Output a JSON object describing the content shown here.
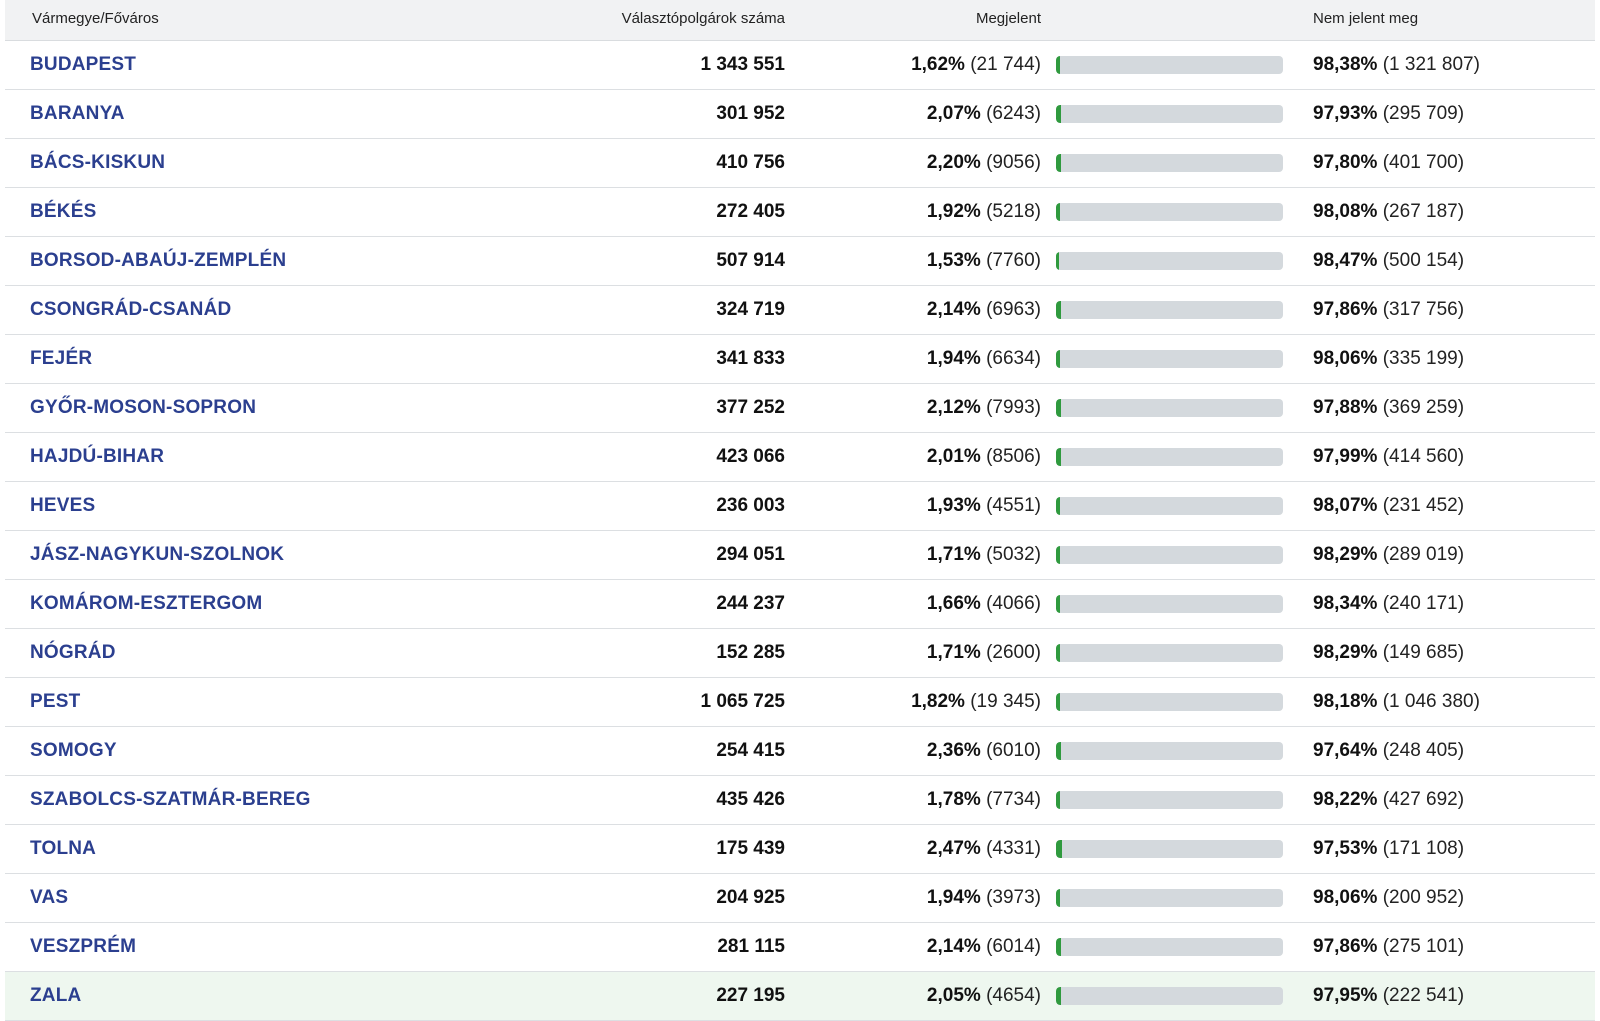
{
  "header": {
    "name": "Vármegye/Főváros",
    "voters": "Választópolgárok száma",
    "turnout": "Megjelent",
    "absent": "Nem jelent meg"
  },
  "colors": {
    "link": "#2b3f8f",
    "bar_fill": "#2f9a3e",
    "bar_track": "#d4d9dd",
    "highlight_row": "#eef7ef"
  },
  "rows": [
    {
      "name": "BUDAPEST",
      "voters": "1 343 551",
      "turnout_pct": "1,62%",
      "turnout_count": "(21 744)",
      "absent_pct": "98,38%",
      "absent_count": "(1 321 807)",
      "turnout_value": 1.62
    },
    {
      "name": "BARANYA",
      "voters": "301 952",
      "turnout_pct": "2,07%",
      "turnout_count": "(6243)",
      "absent_pct": "97,93%",
      "absent_count": "(295 709)",
      "turnout_value": 2.07
    },
    {
      "name": "BÁCS-KISKUN",
      "voters": "410 756",
      "turnout_pct": "2,20%",
      "turnout_count": "(9056)",
      "absent_pct": "97,80%",
      "absent_count": "(401 700)",
      "turnout_value": 2.2
    },
    {
      "name": "BÉKÉS",
      "voters": "272 405",
      "turnout_pct": "1,92%",
      "turnout_count": "(5218)",
      "absent_pct": "98,08%",
      "absent_count": "(267 187)",
      "turnout_value": 1.92
    },
    {
      "name": "BORSOD-ABAÚJ-ZEMPLÉN",
      "voters": "507 914",
      "turnout_pct": "1,53%",
      "turnout_count": "(7760)",
      "absent_pct": "98,47%",
      "absent_count": "(500 154)",
      "turnout_value": 1.53
    },
    {
      "name": "CSONGRÁD-CSANÁD",
      "voters": "324 719",
      "turnout_pct": "2,14%",
      "turnout_count": "(6963)",
      "absent_pct": "97,86%",
      "absent_count": "(317 756)",
      "turnout_value": 2.14
    },
    {
      "name": "FEJÉR",
      "voters": "341 833",
      "turnout_pct": "1,94%",
      "turnout_count": "(6634)",
      "absent_pct": "98,06%",
      "absent_count": "(335 199)",
      "turnout_value": 1.94
    },
    {
      "name": "GYŐR-MOSON-SOPRON",
      "voters": "377 252",
      "turnout_pct": "2,12%",
      "turnout_count": "(7993)",
      "absent_pct": "97,88%",
      "absent_count": "(369 259)",
      "turnout_value": 2.12
    },
    {
      "name": "HAJDÚ-BIHAR",
      "voters": "423 066",
      "turnout_pct": "2,01%",
      "turnout_count": "(8506)",
      "absent_pct": "97,99%",
      "absent_count": "(414 560)",
      "turnout_value": 2.01
    },
    {
      "name": "HEVES",
      "voters": "236 003",
      "turnout_pct": "1,93%",
      "turnout_count": "(4551)",
      "absent_pct": "98,07%",
      "absent_count": "(231 452)",
      "turnout_value": 1.93
    },
    {
      "name": "JÁSZ-NAGYKUN-SZOLNOK",
      "voters": "294 051",
      "turnout_pct": "1,71%",
      "turnout_count": "(5032)",
      "absent_pct": "98,29%",
      "absent_count": "(289 019)",
      "turnout_value": 1.71
    },
    {
      "name": "KOMÁROM-ESZTERGOM",
      "voters": "244 237",
      "turnout_pct": "1,66%",
      "turnout_count": "(4066)",
      "absent_pct": "98,34%",
      "absent_count": "(240 171)",
      "turnout_value": 1.66
    },
    {
      "name": "NÓGRÁD",
      "voters": "152 285",
      "turnout_pct": "1,71%",
      "turnout_count": "(2600)",
      "absent_pct": "98,29%",
      "absent_count": "(149 685)",
      "turnout_value": 1.71
    },
    {
      "name": "PEST",
      "voters": "1 065 725",
      "turnout_pct": "1,82%",
      "turnout_count": "(19 345)",
      "absent_pct": "98,18%",
      "absent_count": "(1 046 380)",
      "turnout_value": 1.82
    },
    {
      "name": "SOMOGY",
      "voters": "254 415",
      "turnout_pct": "2,36%",
      "turnout_count": "(6010)",
      "absent_pct": "97,64%",
      "absent_count": "(248 405)",
      "turnout_value": 2.36
    },
    {
      "name": "SZABOLCS-SZATMÁR-BEREG",
      "voters": "435 426",
      "turnout_pct": "1,78%",
      "turnout_count": "(7734)",
      "absent_pct": "98,22%",
      "absent_count": "(427 692)",
      "turnout_value": 1.78
    },
    {
      "name": "TOLNA",
      "voters": "175 439",
      "turnout_pct": "2,47%",
      "turnout_count": "(4331)",
      "absent_pct": "97,53%",
      "absent_count": "(171 108)",
      "turnout_value": 2.47
    },
    {
      "name": "VAS",
      "voters": "204 925",
      "turnout_pct": "1,94%",
      "turnout_count": "(3973)",
      "absent_pct": "98,06%",
      "absent_count": "(200 952)",
      "turnout_value": 1.94
    },
    {
      "name": "VESZPRÉM",
      "voters": "281 115",
      "turnout_pct": "2,14%",
      "turnout_count": "(6014)",
      "absent_pct": "97,86%",
      "absent_count": "(275 101)",
      "turnout_value": 2.14
    },
    {
      "name": "ZALA",
      "voters": "227 195",
      "turnout_pct": "2,05%",
      "turnout_count": "(4654)",
      "absent_pct": "97,95%",
      "absent_count": "(222 541)",
      "turnout_value": 2.05,
      "highlighted": true
    }
  ]
}
